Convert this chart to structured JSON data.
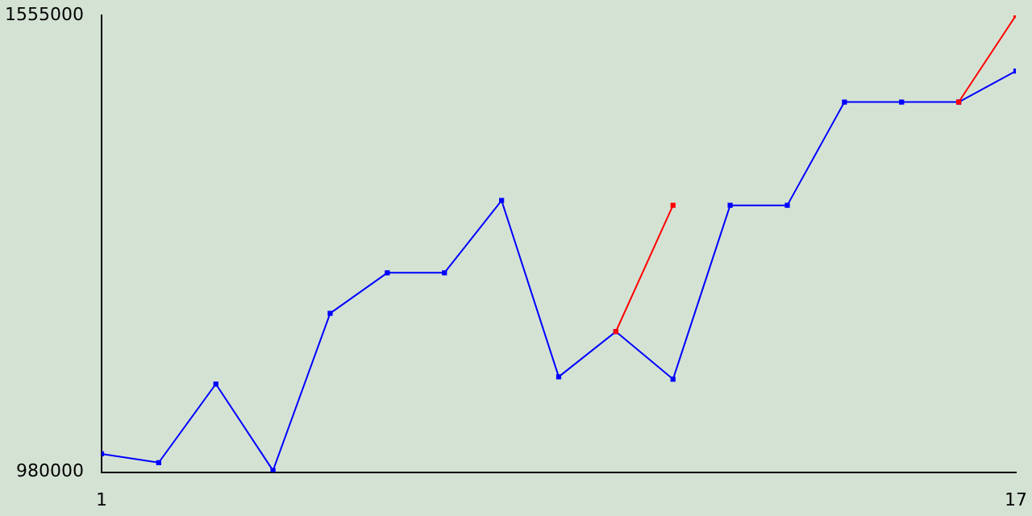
{
  "chart_data": {
    "type": "line",
    "x": [
      1,
      2,
      3,
      4,
      5,
      6,
      7,
      8,
      9,
      10,
      11,
      12,
      13,
      14,
      15,
      16,
      17
    ],
    "series": [
      {
        "color": "#ff0000",
        "values": [
          null,
          null,
          null,
          null,
          null,
          null,
          null,
          null,
          null,
          1157000,
          1316000,
          null,
          null,
          null,
          null,
          1446000,
          1555000
        ]
      },
      {
        "color": "#0000ff",
        "values": [
          1003000,
          992000,
          1091000,
          982000,
          1180000,
          1231000,
          1231000,
          1322000,
          1100000,
          1157000,
          1097000,
          1316000,
          1316000,
          1446000,
          1446000,
          1446000,
          1485000
        ]
      }
    ],
    "xlim": [
      1,
      17
    ],
    "xticks": [
      1,
      17
    ],
    "ylim": [
      980000,
      1555000
    ],
    "yticks": [
      980000,
      1555000
    ],
    "grid": false,
    "legend": false,
    "marker": "square",
    "line_style": "solid"
  }
}
